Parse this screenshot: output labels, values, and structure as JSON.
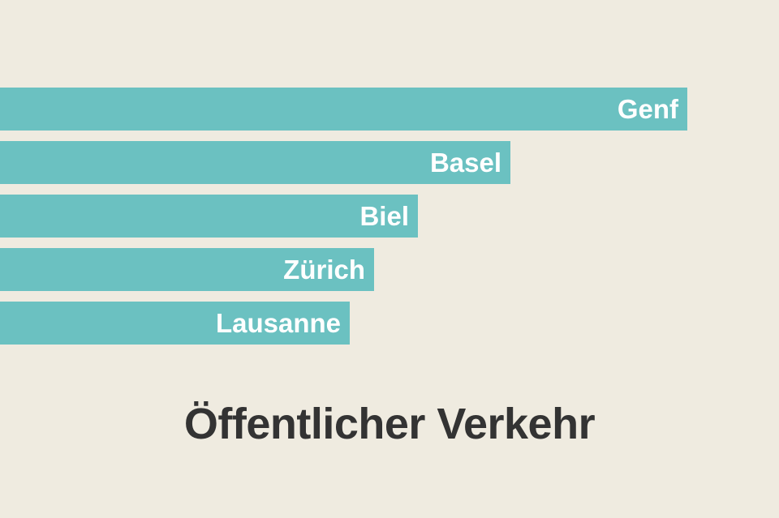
{
  "chart_data": {
    "type": "bar",
    "orientation": "horizontal",
    "title": "Öffentlicher Verkehr",
    "categories": [
      "Genf",
      "Basel",
      "Biel",
      "Zürich",
      "Lausanne"
    ],
    "values": [
      847,
      629,
      515,
      461,
      431
    ],
    "xlim": [
      0,
      960
    ],
    "grid": false,
    "axes_visible": false,
    "legend": "none",
    "bar_color": "#6bc1c1",
    "label_color": "#ffffff",
    "label_position": "inside-end"
  },
  "colors": {
    "background": "#efebe0",
    "title": "#333333"
  }
}
